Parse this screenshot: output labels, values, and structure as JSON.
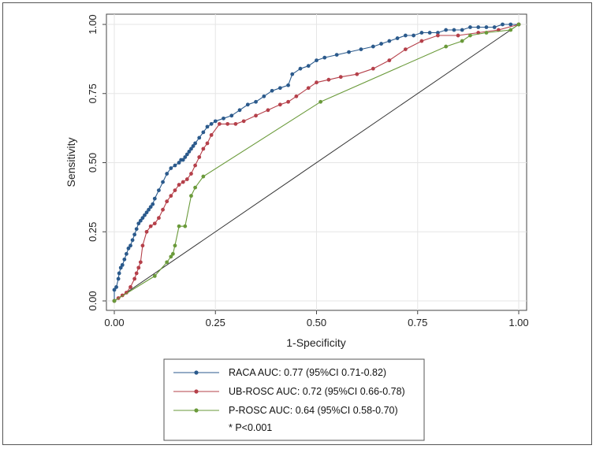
{
  "chart_data": {
    "type": "line",
    "title": "",
    "xlabel": "1-Specificity",
    "ylabel": "Sensitivity",
    "xlim": [
      0,
      1
    ],
    "ylim": [
      0,
      1
    ],
    "xticks": [
      "0.00",
      "0.25",
      "0.50",
      "0.75",
      "1.00"
    ],
    "yticks": [
      "0.00",
      "0.25",
      "0.50",
      "0.75",
      "1.00"
    ],
    "grid": true,
    "legend_position": "bottom",
    "reference_line": {
      "x": [
        0,
        1
      ],
      "y": [
        0,
        1
      ]
    },
    "series": [
      {
        "name": "RACA",
        "legend": "RACA AUC: 0.77 (95%CI 0.71-0.82)",
        "color": "#2b5a8c",
        "x": [
          0,
          0,
          0.005,
          0.01,
          0.012,
          0.016,
          0.02,
          0.025,
          0.03,
          0.035,
          0.04,
          0.045,
          0.05,
          0.055,
          0.06,
          0.065,
          0.07,
          0.075,
          0.08,
          0.085,
          0.09,
          0.095,
          0.1,
          0.11,
          0.12,
          0.13,
          0.14,
          0.15,
          0.16,
          0.165,
          0.17,
          0.175,
          0.18,
          0.185,
          0.19,
          0.195,
          0.2,
          0.21,
          0.22,
          0.23,
          0.24,
          0.25,
          0.27,
          0.29,
          0.31,
          0.33,
          0.35,
          0.37,
          0.39,
          0.41,
          0.43,
          0.44,
          0.46,
          0.48,
          0.5,
          0.52,
          0.55,
          0.58,
          0.61,
          0.64,
          0.66,
          0.68,
          0.7,
          0.72,
          0.74,
          0.76,
          0.78,
          0.8,
          0.82,
          0.84,
          0.86,
          0.88,
          0.9,
          0.92,
          0.94,
          0.96,
          0.98,
          1.0
        ],
        "y": [
          0,
          0.04,
          0.05,
          0.08,
          0.1,
          0.12,
          0.13,
          0.15,
          0.17,
          0.19,
          0.2,
          0.22,
          0.24,
          0.26,
          0.28,
          0.29,
          0.3,
          0.31,
          0.32,
          0.33,
          0.34,
          0.35,
          0.37,
          0.4,
          0.43,
          0.46,
          0.48,
          0.49,
          0.5,
          0.51,
          0.51,
          0.52,
          0.53,
          0.54,
          0.55,
          0.56,
          0.57,
          0.59,
          0.61,
          0.63,
          0.64,
          0.65,
          0.66,
          0.67,
          0.69,
          0.71,
          0.72,
          0.74,
          0.76,
          0.77,
          0.78,
          0.82,
          0.84,
          0.85,
          0.87,
          0.88,
          0.89,
          0.9,
          0.91,
          0.92,
          0.93,
          0.94,
          0.95,
          0.96,
          0.96,
          0.97,
          0.97,
          0.97,
          0.98,
          0.98,
          0.98,
          0.99,
          0.99,
          0.99,
          0.99,
          1.0,
          1.0,
          1.0
        ]
      },
      {
        "name": "UB-ROSC",
        "legend": "UB-ROSC AUC: 0.72 (95%CI 0.66-0.78)",
        "color": "#b5404a",
        "x": [
          0,
          0.01,
          0.02,
          0.03,
          0.04,
          0.05,
          0.055,
          0.06,
          0.065,
          0.07,
          0.08,
          0.09,
          0.1,
          0.11,
          0.12,
          0.13,
          0.14,
          0.15,
          0.16,
          0.17,
          0.18,
          0.19,
          0.2,
          0.21,
          0.22,
          0.23,
          0.24,
          0.26,
          0.28,
          0.3,
          0.32,
          0.35,
          0.38,
          0.41,
          0.43,
          0.45,
          0.48,
          0.5,
          0.53,
          0.56,
          0.6,
          0.64,
          0.68,
          0.72,
          0.76,
          0.8,
          0.85,
          0.9,
          0.95,
          1.0
        ],
        "y": [
          0,
          0.01,
          0.02,
          0.03,
          0.05,
          0.08,
          0.1,
          0.12,
          0.14,
          0.2,
          0.25,
          0.27,
          0.28,
          0.3,
          0.33,
          0.36,
          0.38,
          0.4,
          0.42,
          0.43,
          0.44,
          0.46,
          0.49,
          0.52,
          0.55,
          0.57,
          0.6,
          0.64,
          0.64,
          0.64,
          0.65,
          0.67,
          0.69,
          0.71,
          0.72,
          0.74,
          0.77,
          0.79,
          0.8,
          0.81,
          0.82,
          0.84,
          0.87,
          0.91,
          0.94,
          0.96,
          0.96,
          0.97,
          0.98,
          1.0
        ]
      },
      {
        "name": "P-ROSC",
        "legend": "P-ROSC AUC: 0.64 (95%CI 0.58-0.70)",
        "color": "#6a9a3a",
        "x": [
          0,
          0.1,
          0.13,
          0.14,
          0.145,
          0.15,
          0.16,
          0.175,
          0.19,
          0.2,
          0.22,
          0.51,
          0.82,
          0.86,
          0.88,
          0.92,
          0.98,
          1.0
        ],
        "y": [
          0,
          0.09,
          0.14,
          0.16,
          0.17,
          0.2,
          0.27,
          0.27,
          0.38,
          0.41,
          0.45,
          0.72,
          0.92,
          0.94,
          0.96,
          0.97,
          0.98,
          1.0
        ]
      }
    ],
    "footnote": "* P<0.001"
  }
}
